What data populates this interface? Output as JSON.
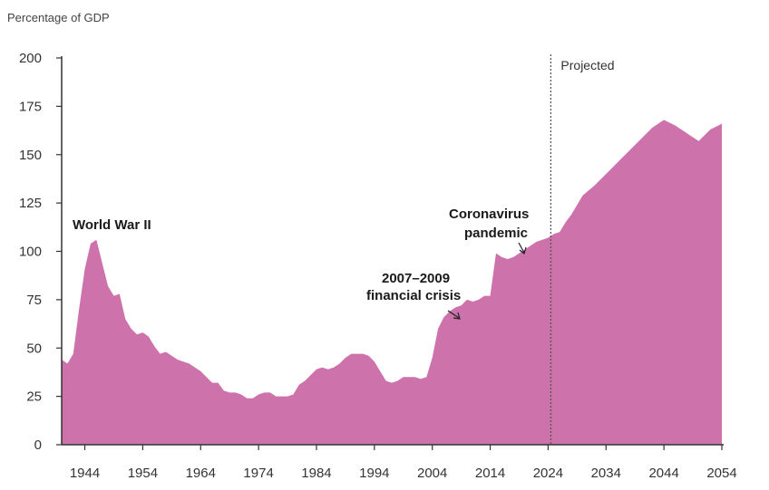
{
  "chart_data": {
    "type": "area",
    "ylabel": "Percentage of GDP",
    "ylim": [
      0,
      200
    ],
    "yticks": [
      0,
      25,
      50,
      75,
      100,
      125,
      150,
      175,
      200
    ],
    "xlim": [
      1940,
      2054
    ],
    "xticks": [
      1944,
      1954,
      1964,
      1974,
      1984,
      1994,
      2004,
      2014,
      2024,
      2034,
      2044,
      2054
    ],
    "projected_label": "Projected",
    "projection_start": 2024,
    "fill_color": "#cd72ab",
    "annotations": [
      {
        "text": "World War II",
        "x": 1946,
        "y": 106
      },
      {
        "text": "2007–2009",
        "x": 2009,
        "y": 66
      },
      {
        "text": "financial crisis",
        "x": 2009,
        "y": 66
      },
      {
        "text": "Coronavirus",
        "x": 2020,
        "y": 99
      },
      {
        "text": "pandemic",
        "x": 2020,
        "y": 99
      }
    ],
    "x": [
      1940,
      1941,
      1942,
      1943,
      1944,
      1945,
      1946,
      1947,
      1948,
      1949,
      1950,
      1951,
      1952,
      1953,
      1954,
      1955,
      1956,
      1957,
      1958,
      1959,
      1960,
      1961,
      1962,
      1963,
      1964,
      1965,
      1966,
      1967,
      1968,
      1969,
      1970,
      1971,
      1972,
      1973,
      1974,
      1975,
      1976,
      1977,
      1978,
      1979,
      1980,
      1981,
      1982,
      1983,
      1984,
      1985,
      1986,
      1987,
      1988,
      1989,
      1990,
      1991,
      1992,
      1993,
      1994,
      1995,
      1996,
      1997,
      1998,
      1999,
      2000,
      2001,
      2002,
      2003,
      2004,
      2005,
      2006,
      2007,
      2008,
      2009,
      2010,
      2011,
      2012,
      2013,
      2014,
      2015,
      2016,
      2017,
      2018,
      2019,
      2020,
      2021,
      2022,
      2023,
      2024,
      2025,
      2026,
      2027,
      2028,
      2029,
      2030,
      2032,
      2034,
      2036,
      2038,
      2040,
      2042,
      2044,
      2046,
      2048,
      2050,
      2052,
      2054
    ],
    "values": [
      44,
      42,
      47,
      70,
      91,
      104,
      106,
      94,
      82,
      77,
      78,
      65,
      60,
      57,
      58,
      56,
      51,
      47,
      48,
      46,
      44,
      43,
      42,
      40,
      38,
      35,
      32,
      32,
      28,
      27,
      27,
      26,
      24,
      24,
      26,
      27,
      27,
      25,
      25,
      25,
      26,
      31,
      33,
      36,
      39,
      40,
      39,
      40,
      42,
      45,
      47,
      47,
      47,
      46,
      43,
      38,
      33,
      32,
      33,
      35,
      35,
      35,
      34,
      35,
      45,
      60,
      66,
      69,
      71,
      72,
      75,
      74,
      75,
      77,
      77,
      99,
      97,
      96,
      97,
      99,
      101,
      103,
      105,
      106,
      107,
      109,
      110,
      115,
      119,
      124,
      129,
      134,
      140,
      146,
      152,
      158,
      164,
      168,
      165,
      161,
      157,
      163,
      166
    ]
  }
}
